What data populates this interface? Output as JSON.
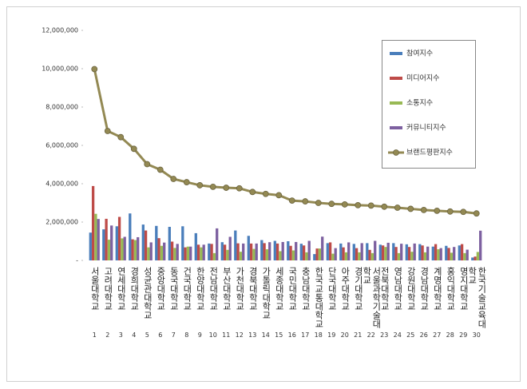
{
  "chart_data": {
    "type": "bar-line",
    "categories": [
      "서울대학교",
      "고려대학교",
      "연세대학교",
      "경희대학교",
      "성균관대학교",
      "중앙대학교",
      "동국대학교",
      "건국대학교",
      "한양대학교",
      "전남대학교",
      "부산대학교",
      "가천대학교",
      "경북대학교",
      "가톨릭대학교",
      "세종대학교",
      "국민대학교",
      "충남대학교",
      "한국교통대학교",
      "단국대학교",
      "아주대학교",
      "경기대학교",
      "서울과학기술대학교",
      "전북대학교",
      "영남대학교",
      "강원대학교",
      "경남대학교",
      "계명대학교",
      "홍익대학교",
      "명지대학교",
      "한국기술교육대학교"
    ],
    "ranks": [
      1,
      2,
      3,
      4,
      5,
      6,
      7,
      8,
      9,
      10,
      11,
      12,
      13,
      14,
      15,
      16,
      17,
      18,
      19,
      20,
      21,
      22,
      23,
      24,
      25,
      26,
      27,
      28,
      29,
      30
    ],
    "ylim": [
      0,
      12000000
    ],
    "yticks": [
      {
        "value": 0,
        "label": "-"
      },
      {
        "value": 2000000,
        "label": "2,000,000"
      },
      {
        "value": 4000000,
        "label": "4,000,000"
      },
      {
        "value": 6000000,
        "label": "6,000,000"
      },
      {
        "value": 8000000,
        "label": "8,000,000"
      },
      {
        "value": 10000000,
        "label": "10,000,000"
      },
      {
        "value": 12000000,
        "label": "12,000,000"
      }
    ],
    "grid": false,
    "series": [
      {
        "name": "참여지수",
        "type": "bar",
        "color": "#4a7ebb",
        "values": [
          1450000,
          1620000,
          1780000,
          2450000,
          1870000,
          1800000,
          1750000,
          1780000,
          1420000,
          880000,
          950000,
          1560000,
          1280000,
          1060000,
          1020000,
          1000000,
          870000,
          330000,
          900000,
          880000,
          860000,
          900000,
          820000,
          900000,
          840000,
          850000,
          720000,
          760000,
          780000,
          150000
        ]
      },
      {
        "name": "미디어지수",
        "type": "bar",
        "color": "#be4b48",
        "values": [
          3880000,
          2170000,
          2270000,
          1100000,
          1560000,
          1160000,
          980000,
          680000,
          820000,
          860000,
          820000,
          890000,
          880000,
          900000,
          880000,
          760000,
          780000,
          620000,
          940000,
          680000,
          640000,
          550000,
          780000,
          700000,
          700000,
          780000,
          850000,
          650000,
          850000,
          200000
        ]
      },
      {
        "name": "소통지수",
        "type": "bar",
        "color": "#98b954",
        "values": [
          2430000,
          1080000,
          1150000,
          1060000,
          680000,
          760000,
          650000,
          720000,
          680000,
          380000,
          550000,
          450000,
          600000,
          580000,
          480000,
          520000,
          420000,
          620000,
          350000,
          420000,
          420000,
          380000,
          700000,
          380000,
          450000,
          420000,
          580000,
          400000,
          380000,
          440000
        ]
      },
      {
        "name": "커뮤니티지수",
        "type": "bar",
        "color": "#7d60a0",
        "values": [
          2160000,
          1820000,
          1230000,
          1210000,
          940000,
          930000,
          860000,
          720000,
          820000,
          1670000,
          1230000,
          880000,
          880000,
          950000,
          960000,
          960000,
          1020000,
          1240000,
          640000,
          940000,
          900000,
          1020000,
          920000,
          870000,
          880000,
          720000,
          640000,
          700000,
          560000,
          1550000
        ]
      },
      {
        "name": "브랜드평판지수",
        "type": "line",
        "color": "#938953",
        "values": [
          9980000,
          6750000,
          6430000,
          5820000,
          5020000,
          4730000,
          4250000,
          4080000,
          3920000,
          3840000,
          3790000,
          3760000,
          3570000,
          3470000,
          3400000,
          3120000,
          3080000,
          3000000,
          2950000,
          2920000,
          2880000,
          2860000,
          2800000,
          2750000,
          2690000,
          2630000,
          2590000,
          2550000,
          2530000,
          2450000
        ]
      }
    ]
  }
}
